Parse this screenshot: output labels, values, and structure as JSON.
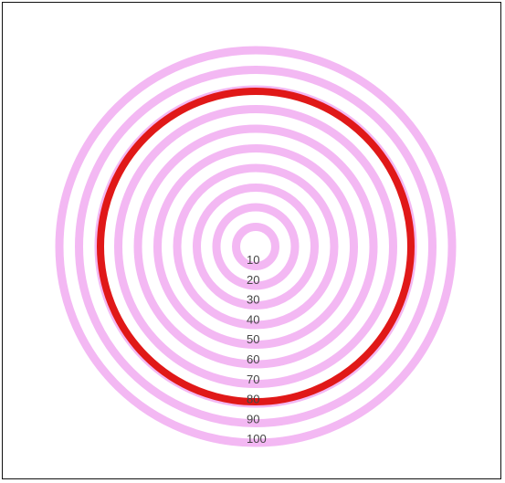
{
  "diagram": {
    "rings": [
      {
        "label": "10",
        "highlighted": false
      },
      {
        "label": "20",
        "highlighted": false
      },
      {
        "label": "30",
        "highlighted": false
      },
      {
        "label": "40",
        "highlighted": false
      },
      {
        "label": "50",
        "highlighted": false
      },
      {
        "label": "60",
        "highlighted": false
      },
      {
        "label": "70",
        "highlighted": false
      },
      {
        "label": "80",
        "highlighted": true
      },
      {
        "label": "90",
        "highlighted": false
      },
      {
        "label": "100",
        "highlighted": false
      }
    ],
    "colors": {
      "ring": "#f3b8f3",
      "highlight": "#e01818",
      "label": "#444444",
      "background": "#ffffff",
      "border": "#111111"
    }
  }
}
